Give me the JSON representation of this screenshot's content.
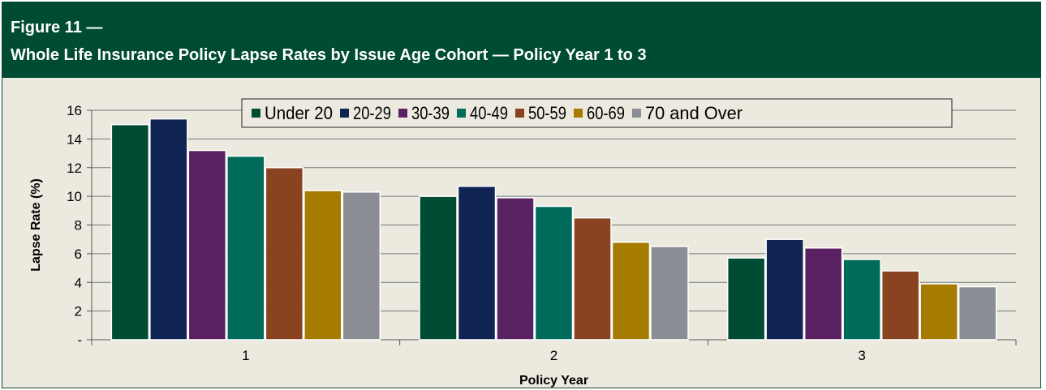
{
  "figure": {
    "label": "Figure 11 —",
    "title": "Whole Life Insurance Policy Lapse Rates by Issue Age Cohort — Policy Year 1 to 3"
  },
  "chart_data": {
    "type": "bar",
    "xlabel": "Policy Year",
    "ylabel": "Lapse Rate (%)",
    "categories": [
      "1",
      "2",
      "3"
    ],
    "ylim": [
      0,
      16
    ],
    "yticks": [
      0,
      2,
      4,
      6,
      8,
      10,
      12,
      14,
      16
    ],
    "ytick_labels": [
      "-",
      "2",
      "4",
      "6",
      "8",
      "10",
      "12",
      "14",
      "16"
    ],
    "grid": true,
    "legend_position": "top",
    "series": [
      {
        "name": "Under 20",
        "color": "#004b33",
        "values": [
          15.0,
          10.0,
          5.7
        ]
      },
      {
        "name": "20-29",
        "color": "#0f2452",
        "values": [
          15.4,
          10.7,
          7.0
        ]
      },
      {
        "name": "30-39",
        "color": "#5a2263",
        "values": [
          13.2,
          9.9,
          6.4
        ]
      },
      {
        "name": "40-49",
        "color": "#006b5b",
        "values": [
          12.8,
          9.3,
          5.6
        ]
      },
      {
        "name": "50-59",
        "color": "#8a4321",
        "values": [
          12.0,
          8.5,
          4.8
        ]
      },
      {
        "name": "60-69",
        "color": "#a67c00",
        "values": [
          10.4,
          6.8,
          3.9
        ]
      },
      {
        "name": "70 and Over",
        "color": "#8a8d93",
        "values": [
          10.3,
          6.5,
          3.7
        ]
      }
    ]
  }
}
